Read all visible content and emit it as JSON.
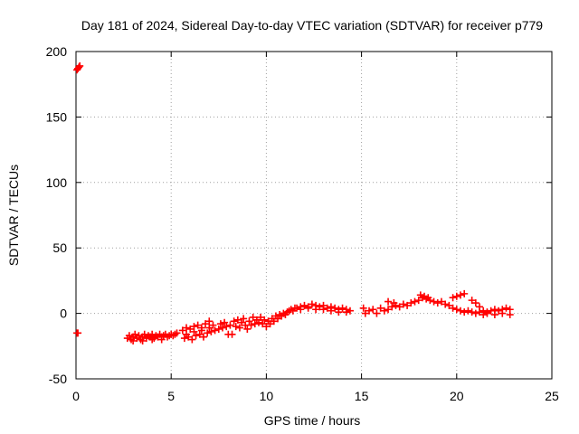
{
  "chart_data": {
    "type": "scatter",
    "title": "Day 181 of 2024, Sidereal Day-to-day VTEC variation (SDTVAR) for receiver p779",
    "xlabel": "GPS time / hours",
    "ylabel": "SDTVAR / TECUs",
    "xlim": [
      0,
      25
    ],
    "ylim": [
      -50,
      200
    ],
    "xticks": [
      0,
      5,
      10,
      15,
      20,
      25
    ],
    "yticks": [
      -50,
      0,
      50,
      100,
      150,
      200
    ],
    "xtick_labels": [
      "0",
      "5",
      "10",
      "15",
      "20",
      "25"
    ],
    "ytick_labels": [
      "-50",
      "0",
      "50",
      "100",
      "150",
      "200"
    ],
    "grid": true,
    "marker": "plus",
    "color": "#ff0000",
    "series": [
      {
        "name": "SDTVAR",
        "points": [
          [
            0.05,
            186
          ],
          [
            0.1,
            187
          ],
          [
            0.15,
            188
          ],
          [
            0.2,
            189
          ],
          [
            0.05,
            -15
          ],
          [
            0.1,
            -15
          ],
          [
            2.7,
            -19
          ],
          [
            2.8,
            -17
          ],
          [
            2.9,
            -20
          ],
          [
            3.0,
            -18
          ],
          [
            3.1,
            -16
          ],
          [
            3.2,
            -19
          ],
          [
            3.3,
            -17
          ],
          [
            3.4,
            -20
          ],
          [
            3.5,
            -18
          ],
          [
            3.6,
            -16
          ],
          [
            3.7,
            -19
          ],
          [
            3.8,
            -17
          ],
          [
            3.9,
            -18
          ],
          [
            4.0,
            -16
          ],
          [
            4.1,
            -19
          ],
          [
            4.2,
            -17
          ],
          [
            4.3,
            -18
          ],
          [
            4.4,
            -16
          ],
          [
            4.5,
            -18
          ],
          [
            4.6,
            -17
          ],
          [
            4.7,
            -16
          ],
          [
            4.8,
            -18
          ],
          [
            4.9,
            -17
          ],
          [
            5.0,
            -16
          ],
          [
            5.1,
            -17
          ],
          [
            5.2,
            -16
          ],
          [
            5.3,
            -15
          ],
          [
            3.0,
            -21
          ],
          [
            3.5,
            -21
          ],
          [
            4.0,
            -20
          ],
          [
            4.5,
            -20
          ],
          [
            5.6,
            -13
          ],
          [
            5.7,
            -19
          ],
          [
            5.8,
            -11
          ],
          [
            5.9,
            -18
          ],
          [
            6.0,
            -12
          ],
          [
            6.1,
            -20
          ],
          [
            6.2,
            -10
          ],
          [
            6.3,
            -17
          ],
          [
            6.4,
            -9
          ],
          [
            6.5,
            -16
          ],
          [
            6.6,
            -11
          ],
          [
            6.7,
            -18
          ],
          [
            6.8,
            -8
          ],
          [
            6.9,
            -15
          ],
          [
            7.0,
            -6
          ],
          [
            7.1,
            -14
          ],
          [
            7.2,
            -9
          ],
          [
            7.3,
            -13
          ],
          [
            5.8,
            -16
          ],
          [
            6.2,
            -14
          ],
          [
            6.6,
            -13
          ],
          [
            7.0,
            -11
          ],
          [
            7.5,
            -12
          ],
          [
            7.6,
            -8
          ],
          [
            7.7,
            -11
          ],
          [
            7.8,
            -7
          ],
          [
            7.9,
            -10
          ],
          [
            8.0,
            -16
          ],
          [
            8.1,
            -9
          ],
          [
            8.2,
            -16
          ],
          [
            8.3,
            -6
          ],
          [
            8.4,
            -10
          ],
          [
            8.5,
            -5
          ],
          [
            8.6,
            -11
          ],
          [
            8.7,
            -7
          ],
          [
            8.8,
            -4
          ],
          [
            8.9,
            -9
          ],
          [
            9.0,
            -12
          ],
          [
            9.1,
            -6
          ],
          [
            9.2,
            -9
          ],
          [
            9.3,
            -3
          ],
          [
            9.4,
            -8
          ],
          [
            9.5,
            -5
          ],
          [
            9.6,
            -7
          ],
          [
            9.7,
            -3
          ],
          [
            9.8,
            -8
          ],
          [
            9.9,
            -5
          ],
          [
            10.0,
            -10
          ],
          [
            10.1,
            -6
          ],
          [
            10.2,
            -8
          ],
          [
            10.3,
            -4
          ],
          [
            10.4,
            -6
          ],
          [
            10.5,
            -2
          ],
          [
            10.6,
            -4
          ],
          [
            10.7,
            -1
          ],
          [
            10.8,
            -2
          ],
          [
            10.9,
            0
          ],
          [
            11.0,
            -1
          ],
          [
            11.1,
            1
          ],
          [
            11.2,
            2
          ],
          [
            11.3,
            3
          ],
          [
            11.4,
            2
          ],
          [
            11.5,
            4
          ],
          [
            11.6,
            4
          ],
          [
            11.8,
            5
          ],
          [
            12.0,
            6
          ],
          [
            12.2,
            5
          ],
          [
            12.4,
            7
          ],
          [
            12.6,
            6
          ],
          [
            12.8,
            5
          ],
          [
            13.0,
            6
          ],
          [
            13.2,
            4
          ],
          [
            13.4,
            5
          ],
          [
            13.6,
            4
          ],
          [
            13.8,
            3
          ],
          [
            14.0,
            4
          ],
          [
            14.2,
            3
          ],
          [
            14.4,
            2
          ],
          [
            11.8,
            3
          ],
          [
            12.2,
            4
          ],
          [
            12.6,
            3
          ],
          [
            13.0,
            3
          ],
          [
            13.4,
            2
          ],
          [
            13.8,
            1
          ],
          [
            14.2,
            1
          ],
          [
            15.1,
            4
          ],
          [
            15.2,
            0
          ],
          [
            15.4,
            2
          ],
          [
            15.6,
            3
          ],
          [
            15.8,
            0
          ],
          [
            16.0,
            4
          ],
          [
            16.2,
            2
          ],
          [
            16.4,
            3
          ],
          [
            16.6,
            5
          ],
          [
            16.8,
            6
          ],
          [
            17.0,
            5
          ],
          [
            17.2,
            7
          ],
          [
            17.4,
            6
          ],
          [
            17.6,
            8
          ],
          [
            17.8,
            9
          ],
          [
            18.0,
            10
          ],
          [
            18.2,
            12
          ],
          [
            18.4,
            11
          ],
          [
            18.6,
            10
          ],
          [
            18.8,
            9
          ],
          [
            19.0,
            8
          ],
          [
            19.2,
            9
          ],
          [
            19.4,
            7
          ],
          [
            19.6,
            6
          ],
          [
            16.4,
            9
          ],
          [
            16.7,
            8
          ],
          [
            18.1,
            14
          ],
          [
            18.3,
            13
          ],
          [
            18.5,
            12
          ],
          [
            19.8,
            4
          ],
          [
            20.0,
            3
          ],
          [
            20.2,
            2
          ],
          [
            20.4,
            1
          ],
          [
            20.6,
            2
          ],
          [
            20.8,
            1
          ],
          [
            21.0,
            0
          ],
          [
            21.2,
            1
          ],
          [
            21.4,
            2
          ],
          [
            21.6,
            1
          ],
          [
            21.8,
            2
          ],
          [
            22.0,
            3
          ],
          [
            22.2,
            2
          ],
          [
            22.4,
            3
          ],
          [
            22.6,
            4
          ],
          [
            22.8,
            3
          ],
          [
            19.8,
            12
          ],
          [
            20.0,
            13
          ],
          [
            20.2,
            14
          ],
          [
            20.4,
            15
          ],
          [
            20.8,
            10
          ],
          [
            21.0,
            8
          ],
          [
            21.2,
            5
          ],
          [
            21.4,
            -1
          ],
          [
            21.6,
            0
          ],
          [
            22.0,
            -1
          ],
          [
            22.4,
            0
          ],
          [
            22.8,
            -1
          ]
        ]
      }
    ]
  }
}
